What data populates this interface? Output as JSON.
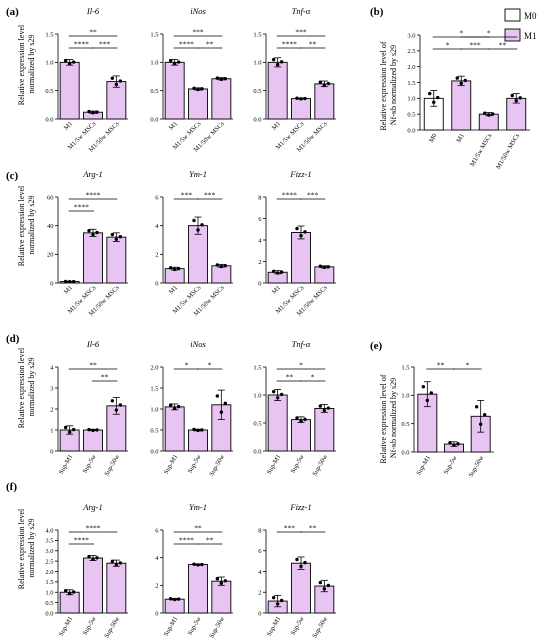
{
  "colors": {
    "m1_fill": "#e8c4f3",
    "m0_fill": "#ffffff",
    "stroke": "#000000"
  },
  "legend": {
    "items": [
      {
        "label": "M0",
        "color": "#ffffff"
      },
      {
        "label": "M1",
        "color": "#e8c4f3"
      }
    ]
  },
  "panels": [
    {
      "id": "a",
      "label": "(a)",
      "ylabel_lines": [
        "Relative expression level",
        "normalized by s29"
      ]
    },
    {
      "id": "b",
      "label": "(b)",
      "ylabel_lines": [
        "Relative expression level of",
        "Nf-κb normalized by s29"
      ]
    },
    {
      "id": "c",
      "label": "(c)",
      "ylabel_lines": [
        "Relative expression level",
        "normalized by s29"
      ]
    },
    {
      "id": "d",
      "label": "(d)",
      "ylabel_lines": [
        "Relative expression level",
        "normalized by s29"
      ]
    },
    {
      "id": "e",
      "label": "(e)",
      "ylabel_lines": [
        "Relative expression level of",
        "Nf-κb normalized by s29"
      ]
    },
    {
      "id": "f",
      "label": "(f)",
      "ylabel_lines": [
        "Relative expression level",
        "normalized by s29"
      ]
    }
  ],
  "chart_data": [
    {
      "panel": "a",
      "type": "bar",
      "title": "Il-6",
      "categories": [
        "M1",
        "M1/5w MSCs",
        "M1/50w MSCs"
      ],
      "values": [
        1.0,
        0.12,
        0.66
      ],
      "errors": [
        0.05,
        0.02,
        0.1
      ],
      "ylim": [
        0,
        1.5
      ],
      "yticks": [
        "0.0",
        "0.5",
        "1.0",
        "1.5"
      ],
      "sig": [
        [
          "**",
          0,
          2
        ],
        [
          "****",
          0,
          1
        ],
        [
          "***",
          1,
          2
        ]
      ]
    },
    {
      "panel": "a",
      "type": "bar",
      "title": "iNos",
      "categories": [
        "M1",
        "M1/5w MSCs",
        "M1/50w MSCs"
      ],
      "values": [
        1.0,
        0.53,
        0.71
      ],
      "errors": [
        0.05,
        0.02,
        0.02
      ],
      "ylim": [
        0,
        1.5
      ],
      "yticks": [
        "0.0",
        "0.5",
        "1.0",
        "1.5"
      ],
      "sig": [
        [
          "***",
          0,
          2
        ],
        [
          "****",
          0,
          1
        ],
        [
          "**",
          1,
          2
        ]
      ]
    },
    {
      "panel": "a",
      "type": "bar",
      "title": "Tnf-α",
      "categories": [
        "M1",
        "M1/5w MSCs",
        "M1/50w MSCs"
      ],
      "values": [
        1.0,
        0.36,
        0.62
      ],
      "errors": [
        0.08,
        0.01,
        0.05
      ],
      "ylim": [
        0,
        1.5
      ],
      "yticks": [
        "0.0",
        "0.5",
        "1.0",
        "1.5"
      ],
      "sig": [
        [
          "***",
          0,
          2
        ],
        [
          "****",
          0,
          1
        ],
        [
          "**",
          1,
          2
        ]
      ]
    },
    {
      "panel": "b",
      "type": "bar",
      "title": "",
      "categories": [
        "M0",
        "M1",
        "M1/5w MSCs",
        "M1/50w MSCs"
      ],
      "values": [
        1.0,
        1.55,
        0.5,
        1.0
      ],
      "errors": [
        0.25,
        0.15,
        0.05,
        0.15
      ],
      "colors": [
        "#ffffff",
        "#e8c4f3",
        "#e8c4f3",
        "#e8c4f3"
      ],
      "ylim": [
        0,
        3.0
      ],
      "yticks": [
        "0.0",
        "0.5",
        "1.0",
        "1.5",
        "2.0",
        "2.5",
        "3.0"
      ],
      "sig": [
        [
          "*",
          0,
          2
        ],
        [
          "*",
          1,
          3
        ],
        [
          "*",
          0,
          1
        ],
        [
          "***",
          1,
          2
        ],
        [
          "**",
          2,
          3
        ]
      ]
    },
    {
      "panel": "c",
      "type": "bar",
      "title": "Arg-1",
      "categories": [
        "M1",
        "M1/5w MSCs",
        "M1/50w MSCs"
      ],
      "values": [
        1.0,
        35.0,
        32.0
      ],
      "errors": [
        0.2,
        2.5,
        3.0
      ],
      "ylim": [
        0,
        60
      ],
      "yticks": [
        "0",
        "20",
        "40",
        "60"
      ],
      "sig": [
        [
          "****",
          0,
          2
        ],
        [
          "****",
          0,
          1
        ]
      ]
    },
    {
      "panel": "c",
      "type": "bar",
      "title": "Ym-1",
      "categories": [
        "M1",
        "M1/5w MSCs",
        "M1/50w MSCs"
      ],
      "values": [
        1.0,
        4.0,
        1.2
      ],
      "errors": [
        0.1,
        0.6,
        0.1
      ],
      "ylim": [
        0,
        6
      ],
      "yticks": [
        "0",
        "2",
        "4",
        "6"
      ],
      "sig": [
        [
          "***",
          0,
          1
        ],
        [
          "***",
          1,
          2
        ]
      ]
    },
    {
      "panel": "c",
      "type": "bar",
      "title": "Fizz-1",
      "categories": [
        "M1",
        "M1/5w MSCs",
        "M1/50w MSCs"
      ],
      "values": [
        1.0,
        4.7,
        1.5
      ],
      "errors": [
        0.15,
        0.6,
        0.1
      ],
      "ylim": [
        0,
        8
      ],
      "yticks": [
        "0",
        "2",
        "4",
        "6",
        "8"
      ],
      "sig": [
        [
          "****",
          0,
          1
        ],
        [
          "***",
          1,
          2
        ]
      ]
    },
    {
      "panel": "d",
      "type": "bar",
      "title": "Il-6",
      "categories": [
        "Sup-M1",
        "Sup-5w",
        "Sup-50w"
      ],
      "values": [
        1.0,
        1.0,
        2.15
      ],
      "errors": [
        0.2,
        0.03,
        0.4
      ],
      "ylim": [
        0,
        4
      ],
      "yticks": [
        "0",
        "1",
        "2",
        "3",
        "4"
      ],
      "sig": [
        [
          "**",
          0,
          2
        ],
        [
          "**",
          1,
          2
        ]
      ]
    },
    {
      "panel": "d",
      "type": "bar",
      "title": "iNos",
      "categories": [
        "Sup-M1",
        "Sup-5w",
        "Sup-50w"
      ],
      "values": [
        1.05,
        0.5,
        1.1
      ],
      "errors": [
        0.07,
        0.02,
        0.35
      ],
      "ylim": [
        0,
        2.0
      ],
      "yticks": [
        "0.0",
        "0.5",
        "1.0",
        "1.5",
        "2.0"
      ],
      "sig": [
        [
          "*",
          0,
          1
        ],
        [
          "*",
          1,
          2
        ]
      ]
    },
    {
      "panel": "d",
      "type": "bar",
      "title": "Tnf-α",
      "categories": [
        "Sup-M1",
        "Sup-5w",
        "Sup-50w"
      ],
      "values": [
        1.0,
        0.56,
        0.76
      ],
      "errors": [
        0.1,
        0.05,
        0.07
      ],
      "ylim": [
        0,
        1.5
      ],
      "yticks": [
        "0.0",
        "0.5",
        "1.0",
        "1.5"
      ],
      "sig": [
        [
          "*",
          0,
          2
        ],
        [
          "**",
          0,
          1
        ],
        [
          "*",
          1,
          2
        ]
      ]
    },
    {
      "panel": "e",
      "type": "bar",
      "title": "",
      "categories": [
        "Sup-M1",
        "Sup-5w",
        "Sup-50w"
      ],
      "values": [
        1.02,
        0.14,
        0.63
      ],
      "errors": [
        0.22,
        0.04,
        0.28
      ],
      "ylim": [
        0,
        1.5
      ],
      "yticks": [
        "0.0",
        "0.5",
        "1.0",
        "1.5"
      ],
      "sig": [
        [
          "**",
          0,
          1
        ],
        [
          "*",
          1,
          2
        ]
      ]
    },
    {
      "panel": "f",
      "type": "bar",
      "title": "Arg-1",
      "categories": [
        "Sup-M1",
        "Sup-5w",
        "Sup-50w"
      ],
      "values": [
        1.0,
        2.65,
        2.4
      ],
      "errors": [
        0.12,
        0.12,
        0.15
      ],
      "ylim": [
        0,
        4.0
      ],
      "yticks": [
        "0.0",
        "0.5",
        "1.0",
        "1.5",
        "2.0",
        "2.5",
        "3.0",
        "3.5",
        "4.0"
      ],
      "sig": [
        [
          "****",
          0,
          2
        ],
        [
          "****",
          0,
          1
        ]
      ]
    },
    {
      "panel": "f",
      "type": "bar",
      "title": "Ym-1",
      "categories": [
        "Sup-M1",
        "Sup-5w",
        "Sup-50w"
      ],
      "values": [
        1.0,
        3.5,
        2.3
      ],
      "errors": [
        0.05,
        0.05,
        0.3
      ],
      "ylim": [
        0,
        6
      ],
      "yticks": [
        "0",
        "2",
        "4",
        "6"
      ],
      "sig": [
        [
          "**",
          0,
          2
        ],
        [
          "****",
          0,
          1
        ],
        [
          "**",
          1,
          2
        ]
      ]
    },
    {
      "panel": "f",
      "type": "bar",
      "title": "Fizz-1",
      "categories": [
        "Sup-M1",
        "Sup-5w",
        "Sup-50w"
      ],
      "values": [
        1.15,
        4.8,
        2.6
      ],
      "errors": [
        0.55,
        0.6,
        0.55
      ],
      "ylim": [
        0,
        8
      ],
      "yticks": [
        "0",
        "2",
        "4",
        "6",
        "8"
      ],
      "sig": [
        [
          "***",
          0,
          1
        ],
        [
          "**",
          1,
          2
        ]
      ]
    }
  ]
}
